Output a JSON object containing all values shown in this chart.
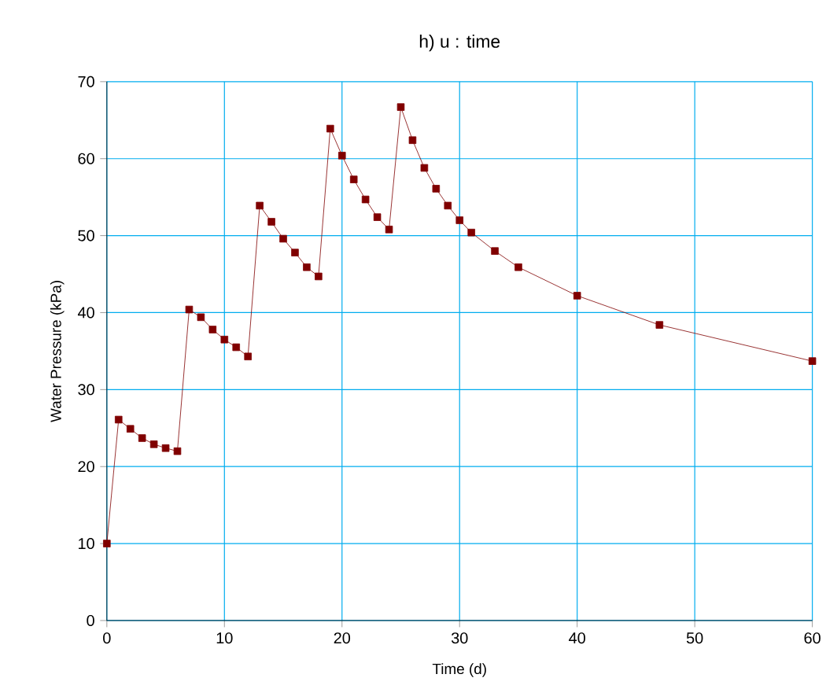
{
  "chart_data": {
    "type": "line",
    "title": "h) u : time",
    "xlabel": "Time (d)",
    "ylabel": "Water Pressure (kPa)",
    "x": [
      0,
      1,
      2,
      3,
      4,
      5,
      6,
      7,
      8,
      9,
      10,
      11,
      12,
      13,
      14,
      15,
      16,
      17,
      18,
      19,
      20,
      21,
      22,
      23,
      24,
      25,
      26,
      27,
      28,
      29,
      30,
      31,
      33,
      35,
      40,
      47,
      60
    ],
    "series": [
      {
        "color": "#800000",
        "values": [
          10,
          26.1,
          24.9,
          23.7,
          22.9,
          22.4,
          22.0,
          40.4,
          39.4,
          37.8,
          36.5,
          35.5,
          34.3,
          53.9,
          51.8,
          49.6,
          47.8,
          45.9,
          44.7,
          63.9,
          60.4,
          57.3,
          54.7,
          52.4,
          50.8,
          66.7,
          62.4,
          58.8,
          56.1,
          53.9,
          52.0,
          50.4,
          48.0,
          45.9,
          42.2,
          38.4,
          33.7
        ]
      }
    ],
    "xlim": [
      0,
      60
    ],
    "ylim": [
      0,
      70
    ],
    "xticks": [
      0,
      10,
      20,
      30,
      40,
      50,
      60
    ],
    "yticks": [
      0,
      10,
      20,
      30,
      40,
      50,
      60,
      70
    ],
    "grid": true,
    "marker": "square",
    "line_style": "solid"
  }
}
